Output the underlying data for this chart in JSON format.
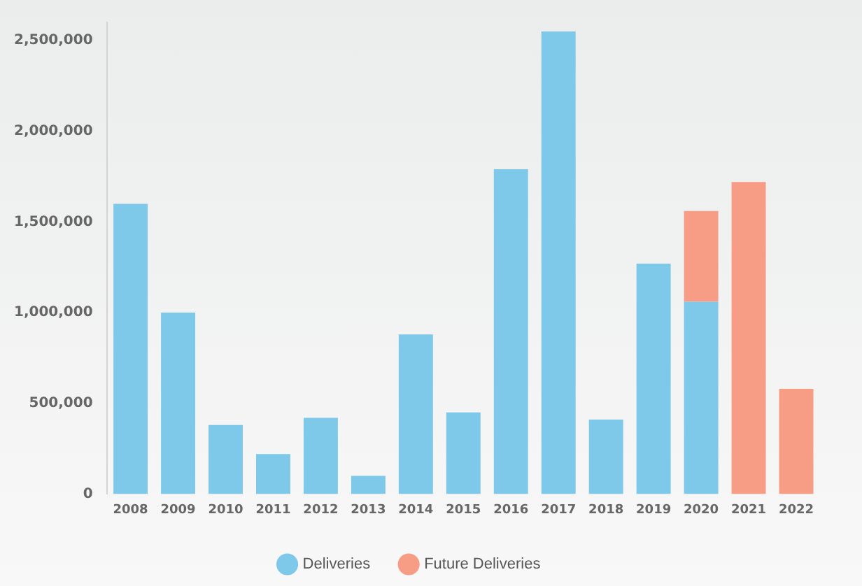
{
  "chart_data": {
    "type": "bar",
    "stacked": true,
    "categories": [
      "2008",
      "2009",
      "2010",
      "2011",
      "2012",
      "2013",
      "2014",
      "2015",
      "2016",
      "2017",
      "2018",
      "2019",
      "2020",
      "2021",
      "2022"
    ],
    "series": [
      {
        "name": "Deliveries",
        "color": "#7ec8e9",
        "values": [
          1600000,
          1000000,
          380000,
          220000,
          420000,
          100000,
          880000,
          450000,
          1790000,
          2550000,
          410000,
          1270000,
          1060000,
          null,
          null
        ]
      },
      {
        "name": "Future Deliveries",
        "color": "#f79c85",
        "values": [
          null,
          null,
          null,
          null,
          null,
          null,
          null,
          null,
          null,
          null,
          null,
          null,
          500000,
          1720000,
          580000
        ]
      }
    ],
    "ylim": [
      0,
      2600000
    ],
    "yticks": [
      0,
      {
        "value": 500000,
        "label": "500,000"
      },
      {
        "value": 1000000,
        "label": "1,000,000"
      },
      {
        "value": 1500000,
        "label": "1,500,000"
      },
      {
        "value": 2000000,
        "label": "2,000,000"
      },
      {
        "value": 2500000,
        "label": "2,500,000"
      }
    ],
    "grid": false,
    "legend": "bottom"
  }
}
